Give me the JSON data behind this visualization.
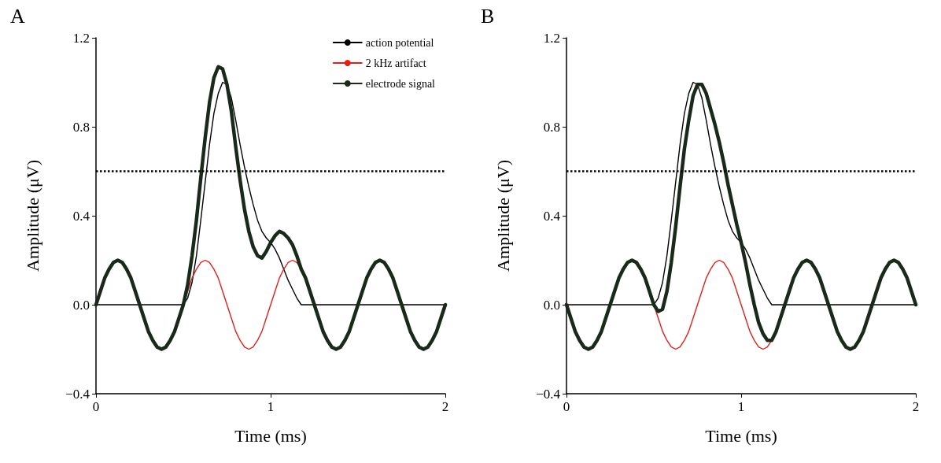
{
  "chart_data": [
    {
      "type": "line",
      "title": "A",
      "xlabel": "Time (ms)",
      "ylabel": "Amplitude (μV)",
      "xlim": [
        0,
        2
      ],
      "xticks": [
        0,
        1,
        2
      ],
      "ylim": [
        -0.4,
        1.2
      ],
      "yticks": [
        {
          "value": -0.4,
          "label": "−0.4"
        },
        {
          "value": 0,
          "label": "0.0"
        },
        {
          "value": 0.4,
          "label": "0.4"
        },
        {
          "value": 0.8,
          "label": "0.8"
        },
        {
          "value": 1.2,
          "label": "1.2"
        }
      ],
      "grid": false,
      "legend": "top right",
      "marker": "none",
      "line_style": "solid",
      "ref_lines": [
        {
          "axis": "y",
          "value": 0.6,
          "color": "#000000",
          "line_style": "dotted"
        }
      ],
      "x": [
        0,
        0.025,
        0.05,
        0.075,
        0.1,
        0.125,
        0.15,
        0.175,
        0.2,
        0.225,
        0.25,
        0.275,
        0.3,
        0.325,
        0.35,
        0.375,
        0.4,
        0.425,
        0.45,
        0.475,
        0.5,
        0.525,
        0.55,
        0.575,
        0.6,
        0.625,
        0.65,
        0.675,
        0.7,
        0.725,
        0.75,
        0.775,
        0.8,
        0.825,
        0.85,
        0.875,
        0.9,
        0.925,
        0.95,
        0.975,
        1,
        1.025,
        1.05,
        1.075,
        1.1,
        1.125,
        1.15,
        1.175,
        1.2,
        1.225,
        1.25,
        1.275,
        1.3,
        1.325,
        1.35,
        1.375,
        1.4,
        1.425,
        1.45,
        1.475,
        1.5,
        1.525,
        1.55,
        1.575,
        1.6,
        1.625,
        1.65,
        1.675,
        1.7,
        1.725,
        1.75,
        1.775,
        1.8,
        1.825,
        1.85,
        1.875,
        1.9,
        1.925,
        1.95,
        1.975,
        2
      ],
      "series": [
        {
          "name": "action potential",
          "color": "#000000",
          "x": [
            0,
            0.5,
            0.525,
            0.55,
            0.575,
            0.6,
            0.625,
            0.65,
            0.675,
            0.7,
            0.725,
            0.75,
            0.775,
            0.8,
            0.825,
            0.85,
            0.875,
            0.9,
            0.925,
            0.95,
            0.975,
            1,
            1.025,
            1.05,
            1.075,
            1.1,
            1.125,
            1.15,
            1.175,
            2
          ],
          "values": [
            0,
            0,
            0.03,
            0.1,
            0.22,
            0.38,
            0.55,
            0.72,
            0.86,
            0.95,
            1.0,
            0.99,
            0.93,
            0.83,
            0.72,
            0.62,
            0.53,
            0.45,
            0.38,
            0.33,
            0.3,
            0.28,
            0.25,
            0.21,
            0.16,
            0.11,
            0.07,
            0.03,
            0,
            0
          ]
        },
        {
          "name": "2 kHz artifact",
          "color": "#e0201b",
          "x": [
            0.5,
            0.525,
            0.55,
            0.575,
            0.6,
            0.625,
            0.65,
            0.675,
            0.7,
            0.725,
            0.75,
            0.775,
            0.8,
            0.825,
            0.85,
            0.875,
            0.9,
            0.925,
            0.95,
            0.975,
            1,
            1.025,
            1.05,
            1.075,
            1.1,
            1.125,
            1.15,
            1.175
          ],
          "values": [
            0,
            0.06,
            0.12,
            0.16,
            0.19,
            0.2,
            0.19,
            0.16,
            0.12,
            0.06,
            0,
            -0.06,
            -0.12,
            -0.16,
            -0.19,
            -0.2,
            -0.19,
            -0.16,
            -0.12,
            -0.06,
            0,
            0.06,
            0.12,
            0.16,
            0.19,
            0.2,
            0.19,
            0.16
          ]
        },
        {
          "name": "electrode signal",
          "color": "#1a2a1a",
          "values": [
            0,
            0.06,
            0.12,
            0.16,
            0.19,
            0.2,
            0.19,
            0.16,
            0.12,
            0.06,
            0,
            -0.06,
            -0.12,
            -0.16,
            -0.19,
            -0.2,
            -0.19,
            -0.16,
            -0.12,
            -0.06,
            0,
            0.09,
            0.22,
            0.38,
            0.57,
            0.75,
            0.91,
            1.02,
            1.07,
            1.06,
            0.99,
            0.87,
            0.71,
            0.56,
            0.43,
            0.33,
            0.26,
            0.22,
            0.21,
            0.24,
            0.28,
            0.31,
            0.33,
            0.32,
            0.3,
            0.27,
            0.22,
            0.16,
            0.12,
            0.06,
            0,
            -0.06,
            -0.12,
            -0.16,
            -0.19,
            -0.2,
            -0.19,
            -0.16,
            -0.12,
            -0.06,
            0,
            0.06,
            0.12,
            0.16,
            0.19,
            0.2,
            0.19,
            0.16,
            0.12,
            0.06,
            0,
            -0.06,
            -0.12,
            -0.16,
            -0.19,
            -0.2,
            -0.19,
            -0.16,
            -0.12,
            -0.06,
            0
          ]
        }
      ]
    },
    {
      "type": "line",
      "title": "B",
      "xlabel": "Time (ms)",
      "ylabel": "Amplitude (μV)",
      "xlim": [
        0,
        2
      ],
      "xticks": [
        0,
        1,
        2
      ],
      "ylim": [
        -0.4,
        1.2
      ],
      "yticks": [
        {
          "value": -0.4,
          "label": "−0.4"
        },
        {
          "value": 0,
          "label": "0.0"
        },
        {
          "value": 0.4,
          "label": "0.4"
        },
        {
          "value": 0.8,
          "label": "0.8"
        },
        {
          "value": 1.2,
          "label": "1.2"
        }
      ],
      "grid": false,
      "marker": "none",
      "line_style": "solid",
      "ref_lines": [
        {
          "axis": "y",
          "value": 0.6,
          "color": "#000000",
          "line_style": "dotted"
        }
      ],
      "x": [
        0,
        0.025,
        0.05,
        0.075,
        0.1,
        0.125,
        0.15,
        0.175,
        0.2,
        0.225,
        0.25,
        0.275,
        0.3,
        0.325,
        0.35,
        0.375,
        0.4,
        0.425,
        0.45,
        0.475,
        0.5,
        0.525,
        0.55,
        0.575,
        0.6,
        0.625,
        0.65,
        0.675,
        0.7,
        0.725,
        0.75,
        0.775,
        0.8,
        0.825,
        0.85,
        0.875,
        0.9,
        0.925,
        0.95,
        0.975,
        1,
        1.025,
        1.05,
        1.075,
        1.1,
        1.125,
        1.15,
        1.175,
        1.2,
        1.225,
        1.25,
        1.275,
        1.3,
        1.325,
        1.35,
        1.375,
        1.4,
        1.425,
        1.45,
        1.475,
        1.5,
        1.525,
        1.55,
        1.575,
        1.6,
        1.625,
        1.65,
        1.675,
        1.7,
        1.725,
        1.75,
        1.775,
        1.8,
        1.825,
        1.85,
        1.875,
        1.9,
        1.925,
        1.95,
        1.975,
        2
      ],
      "series": [
        {
          "color": "#000000",
          "x": [
            0,
            0.5,
            0.525,
            0.55,
            0.575,
            0.6,
            0.625,
            0.65,
            0.675,
            0.7,
            0.725,
            0.75,
            0.775,
            0.8,
            0.825,
            0.85,
            0.875,
            0.9,
            0.925,
            0.95,
            0.975,
            1,
            1.025,
            1.05,
            1.075,
            1.1,
            1.125,
            1.15,
            1.175,
            2
          ],
          "values": [
            0,
            0,
            0.03,
            0.1,
            0.22,
            0.38,
            0.55,
            0.72,
            0.86,
            0.95,
            1.0,
            0.99,
            0.93,
            0.83,
            0.72,
            0.62,
            0.53,
            0.45,
            0.38,
            0.33,
            0.3,
            0.28,
            0.25,
            0.21,
            0.16,
            0.11,
            0.07,
            0.03,
            0,
            0
          ]
        },
        {
          "color": "#e0201b",
          "x": [
            0.5,
            0.525,
            0.55,
            0.575,
            0.6,
            0.625,
            0.65,
            0.675,
            0.7,
            0.725,
            0.75,
            0.775,
            0.8,
            0.825,
            0.85,
            0.875,
            0.9,
            0.925,
            0.95,
            0.975,
            1,
            1.025,
            1.05,
            1.075,
            1.1,
            1.125,
            1.15,
            1.175
          ],
          "values": [
            0,
            -0.06,
            -0.12,
            -0.16,
            -0.19,
            -0.2,
            -0.19,
            -0.16,
            -0.12,
            -0.06,
            0,
            0.06,
            0.12,
            0.16,
            0.19,
            0.2,
            0.19,
            0.16,
            0.12,
            0.06,
            0,
            -0.06,
            -0.12,
            -0.16,
            -0.19,
            -0.2,
            -0.19,
            -0.16
          ]
        },
        {
          "color": "#1a2a1a",
          "values": [
            0,
            -0.06,
            -0.12,
            -0.16,
            -0.19,
            -0.2,
            -0.19,
            -0.16,
            -0.12,
            -0.06,
            0,
            0.06,
            0.12,
            0.16,
            0.19,
            0.2,
            0.19,
            0.16,
            0.12,
            0.06,
            0,
            -0.03,
            -0.02,
            0.06,
            0.19,
            0.35,
            0.53,
            0.7,
            0.83,
            0.94,
            0.99,
            0.99,
            0.95,
            0.88,
            0.81,
            0.73,
            0.64,
            0.54,
            0.45,
            0.36,
            0.28,
            0.19,
            0.09,
            0,
            -0.08,
            -0.13,
            -0.16,
            -0.16,
            -0.12,
            -0.06,
            0,
            0.06,
            0.12,
            0.16,
            0.19,
            0.2,
            0.19,
            0.16,
            0.12,
            0.06,
            0,
            -0.06,
            -0.12,
            -0.16,
            -0.19,
            -0.2,
            -0.19,
            -0.16,
            -0.12,
            -0.06,
            0,
            0.06,
            0.12,
            0.16,
            0.19,
            0.2,
            0.19,
            0.16,
            0.12,
            0.06,
            0
          ]
        }
      ]
    }
  ]
}
